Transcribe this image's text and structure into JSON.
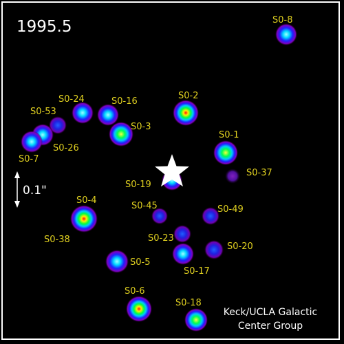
{
  "epoch": "1995.5",
  "scale_label": "0.1\"",
  "credit": {
    "line1": "Keck/UCLA Galactic",
    "line2": "Center Group"
  },
  "label_color": "#e0d020",
  "stars": [
    {
      "name": "S0-8",
      "peak": 0.55
    },
    {
      "name": "S0-2",
      "peak": 1.0
    },
    {
      "name": "S0-24",
      "peak": 0.55
    },
    {
      "name": "S0-16",
      "peak": 0.55
    },
    {
      "name": "S0-53",
      "peak": 0.35
    },
    {
      "name": "S0-3",
      "peak": 0.8
    },
    {
      "name": "S0-26",
      "peak": 0.6
    },
    {
      "name": "S0-7",
      "peak": 0.6
    },
    {
      "name": "S0-1",
      "peak": 0.75
    },
    {
      "name": "S0-37",
      "peak": 0.15
    },
    {
      "name": "S0-19",
      "peak": 0.5
    },
    {
      "name": "S0-45",
      "peak": 0.2
    },
    {
      "name": "S0-4",
      "peak": 0.95
    },
    {
      "name": "S0-49",
      "peak": 0.3
    },
    {
      "name": "S0-38",
      "peak": 0.0
    },
    {
      "name": "S0-23",
      "peak": 0.3
    },
    {
      "name": "S0-20",
      "peak": 0.45
    },
    {
      "name": "S0-5",
      "peak": 0.6
    },
    {
      "name": "S0-17",
      "peak": 0.55
    },
    {
      "name": "S0-6",
      "peak": 1.0
    },
    {
      "name": "S0-18",
      "peak": 0.65
    }
  ]
}
